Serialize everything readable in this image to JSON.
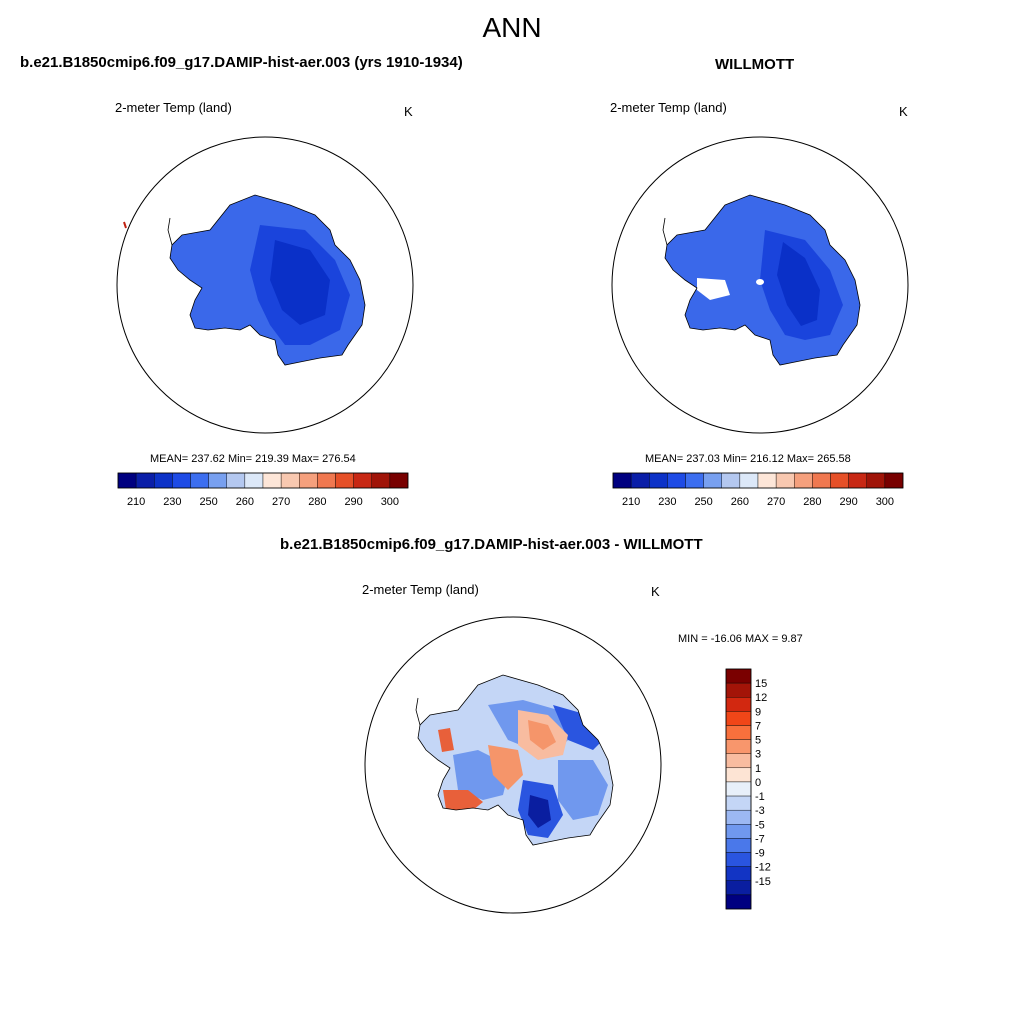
{
  "figure": {
    "season": "ANN"
  },
  "model_panel": {
    "title": "b.e21.B1850cmip6.f09_g17.DAMIP-hist-aer.003 (yrs 1910-1934)",
    "variable": "2-meter Temp (land)",
    "units": "K",
    "stats": "MEAN= 237.62  Min= 219.39  Max= 276.54"
  },
  "obs_panel": {
    "title": "WILLMOTT",
    "variable": "2-meter Temp (land)",
    "units": "K",
    "stats": "MEAN= 237.03  Min= 216.12  Max= 265.58"
  },
  "diff_panel": {
    "title": "b.e21.B1850cmip6.f09_g17.DAMIP-hist-aer.003 - WILLMOTT",
    "variable": "2-meter Temp (land)",
    "units": "K",
    "stats": "MIN = -16.06 MAX =   9.87"
  },
  "abs_colorbar": {
    "colors": [
      "#000080",
      "#0a1ea8",
      "#0c32c8",
      "#1e4be6",
      "#3c6ef0",
      "#78a0f0",
      "#b4c8f0",
      "#dce8f8",
      "#fde6d8",
      "#f8c8b0",
      "#f5a07d",
      "#f07850",
      "#e65028",
      "#c82814",
      "#a01408",
      "#780000"
    ],
    "tick_labels": [
      "210",
      "230",
      "250",
      "260",
      "270",
      "280",
      "290",
      "300"
    ]
  },
  "diff_colorbar": {
    "colors_top_to_bottom": [
      "#7a0000",
      "#a31408",
      "#d22810",
      "#f04618",
      "#f8703c",
      "#f8966c",
      "#f8bca0",
      "#fde4d4",
      "#e8f0fa",
      "#c4d6f6",
      "#9cb8f2",
      "#7098ee",
      "#4a78ea",
      "#2a55e0",
      "#1234c4",
      "#0a1ea0",
      "#000080"
    ],
    "tick_labels_top_to_bottom": [
      "15",
      "12",
      "9",
      "7",
      "5",
      "3",
      "1",
      "0",
      "-1",
      "-3",
      "-5",
      "-7",
      "-9",
      "-12",
      "-15"
    ]
  },
  "map_colors": {
    "ant_mid": "#3a68ea",
    "ant_deep": "#1a44dc",
    "ant_core": "#0a30c8",
    "warm_1": "#f8bca0",
    "warm_2": "#f5956a",
    "warm_3": "#e8603a",
    "cool_1": "#c4d6f6",
    "cool_2": "#7098ee",
    "cool_3": "#2a55e0",
    "cool_4": "#0a1ea0"
  }
}
